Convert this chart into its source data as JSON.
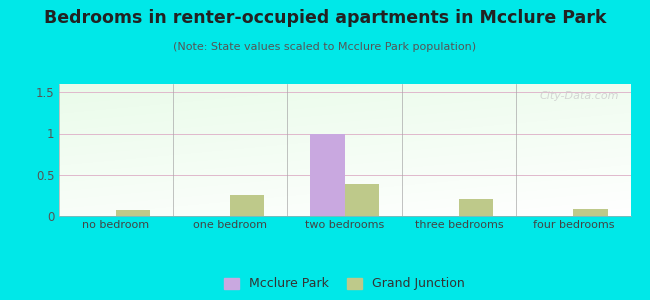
{
  "title": "Bedrooms in renter-occupied apartments in Mcclure Park",
  "subtitle": "(Note: State values scaled to Mcclure Park population)",
  "categories": [
    "no bedroom",
    "one bedroom",
    "two bedrooms",
    "three bedrooms",
    "four bedrooms"
  ],
  "mcclure_park": [
    0.0,
    0.0,
    1.0,
    0.0,
    0.0
  ],
  "grand_junction": [
    0.07,
    0.25,
    0.39,
    0.21,
    0.09
  ],
  "mcclure_color": "#c9a8e0",
  "grand_junction_color": "#bec98a",
  "background_color": "#00e8e8",
  "ylim": [
    0,
    1.6
  ],
  "yticks": [
    0,
    0.5,
    1,
    1.5
  ],
  "bar_width": 0.3,
  "watermark_text": "City-Data.com",
  "legend_mcclure": "Mcclure Park",
  "legend_gj": "Grand Junction",
  "grid_color": "#ddbbcc",
  "plot_grad_top": "#d8eed8",
  "plot_grad_bottom": "#f8fff8"
}
